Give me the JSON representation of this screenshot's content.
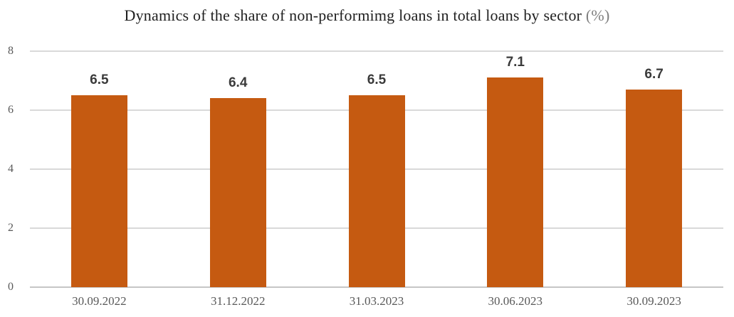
{
  "chart_data": {
    "type": "bar",
    "title": "Dynamics of the share of non-performimg loans in total loans by sector (%)",
    "title_main": "Dynamics of the share of non-performimg loans in total loans by sector",
    "title_suffix": " (%)",
    "categories": [
      "30.09.2022",
      "31.12.2022",
      "31.03.2023",
      "30.06.2023",
      "30.09.2023"
    ],
    "values": [
      6.5,
      6.4,
      6.5,
      7.1,
      6.7
    ],
    "value_labels": [
      "6.5",
      "6.4",
      "6.5",
      "7.1",
      "6.7"
    ],
    "xlabel": "",
    "ylabel": "",
    "ylim": [
      0,
      8
    ],
    "yticks": [
      0,
      2,
      4,
      6,
      8
    ],
    "ytick_labels": [
      "0",
      "2",
      "4",
      "6",
      "8"
    ],
    "grid": true,
    "legend": false
  },
  "colors": {
    "background": "#ffffff",
    "bar": "#c55a11",
    "title_text": "#1f1f1f",
    "title_suffix": "#7f7f7f",
    "axis_label": "#595959",
    "value_label": "#3a3a3a",
    "gridline": "#d9d9d9",
    "zero_line": "#c6c6c6"
  }
}
